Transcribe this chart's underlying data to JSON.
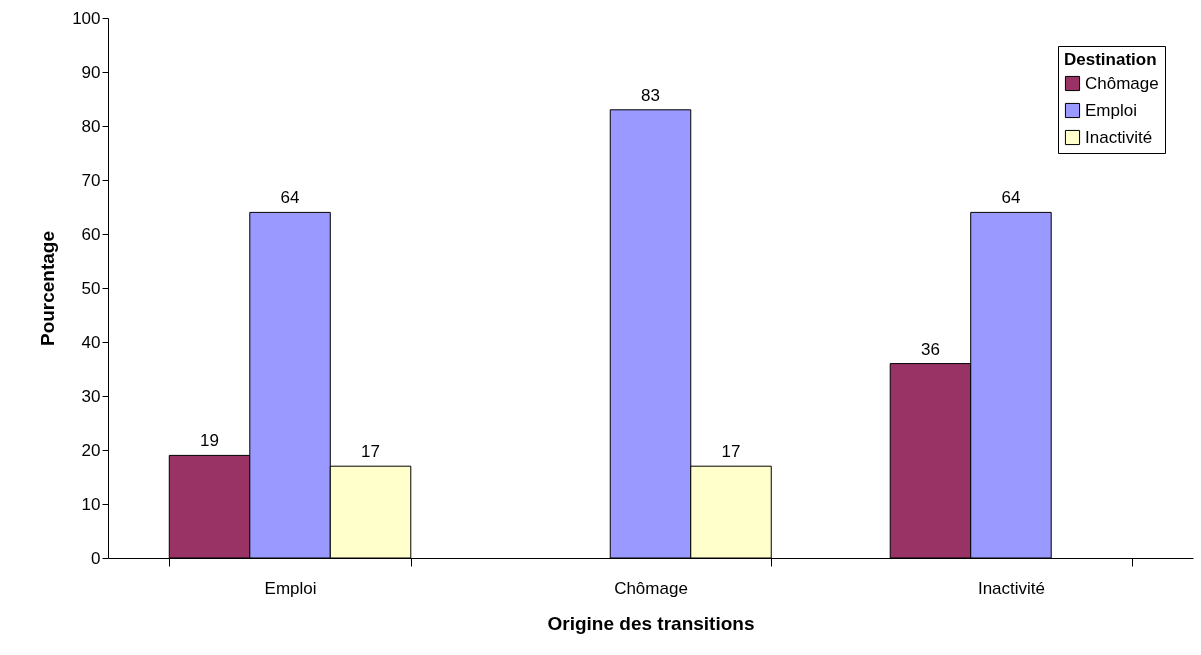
{
  "chart_data": {
    "type": "bar",
    "xlabel": "Origine des transitions",
    "ylabel": "Pourcentage",
    "legend_title": "Destination",
    "categories": [
      "Emploi",
      "Chômage",
      "Inactivité"
    ],
    "series": [
      {
        "name": "Chômage",
        "color": "#993366",
        "values": [
          19,
          null,
          36
        ]
      },
      {
        "name": "Emploi",
        "color": "#9999ff",
        "values": [
          64,
          83,
          64
        ]
      },
      {
        "name": "Inactivité",
        "color": "#ffffcc",
        "values": [
          17,
          17,
          null
        ]
      }
    ],
    "ylim": [
      0,
      100
    ],
    "yticks": [
      0,
      10,
      20,
      30,
      40,
      50,
      60,
      70,
      80,
      90,
      100
    ],
    "grid": false,
    "legend": "top right",
    "data_labels": true
  }
}
